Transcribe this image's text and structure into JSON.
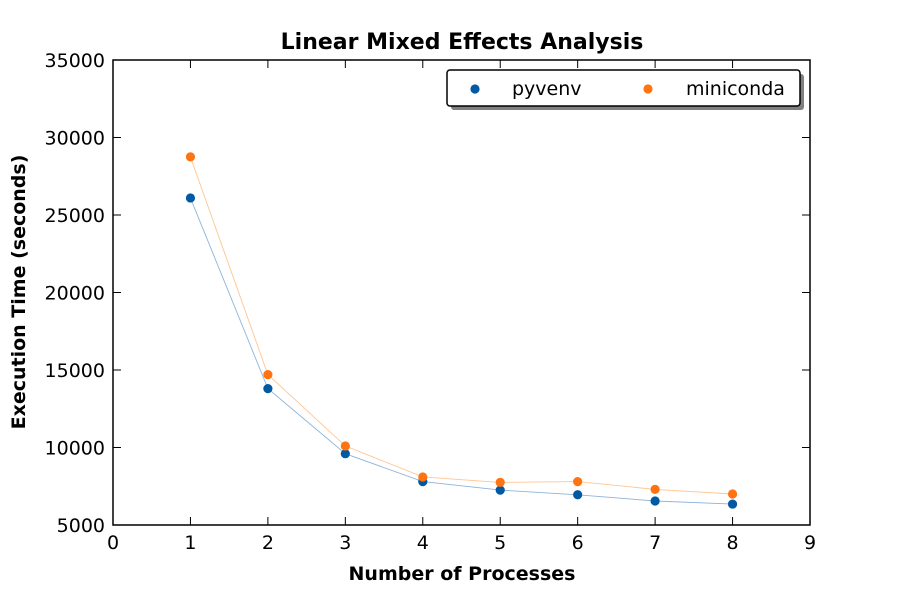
{
  "chart_data": {
    "type": "scatter",
    "title": "Linear Mixed Effects Analysis",
    "xlabel": "Number of Processes",
    "ylabel": "Execution Time (seconds)",
    "xlim": [
      0,
      9
    ],
    "ylim": [
      5000,
      35000
    ],
    "xticks": [
      "0",
      "1",
      "2",
      "3",
      "4",
      "5",
      "6",
      "7",
      "8",
      "9"
    ],
    "yticks": [
      "5000",
      "10000",
      "15000",
      "20000",
      "25000",
      "30000",
      "35000"
    ],
    "grid": false,
    "legend_position": "top-right",
    "x": [
      1,
      2,
      3,
      4,
      5,
      6,
      7,
      8
    ],
    "series": [
      {
        "name": "pyvenv",
        "color": "#0059a3",
        "line_color": "#8fb4d9",
        "values": [
          26100,
          13800,
          9600,
          7800,
          7250,
          6950,
          6550,
          6350
        ]
      },
      {
        "name": "miniconda",
        "color": "#ff7311",
        "line_color": "#ffc592",
        "values": [
          28750,
          14700,
          10100,
          8100,
          7750,
          7800,
          7300,
          7000
        ]
      }
    ]
  }
}
